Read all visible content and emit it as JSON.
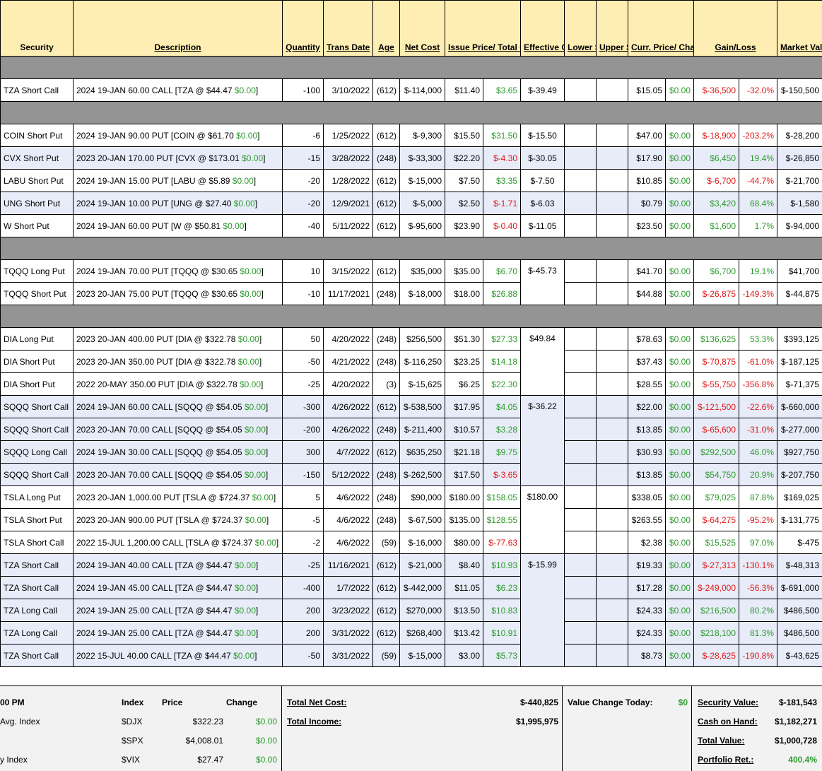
{
  "headers": {
    "security": "Security",
    "description": "Description",
    "quantity": "Quantity",
    "trans_date": "Trans Date",
    "age": "Age",
    "net_cost": "Net Cost",
    "issue_price": "Issue Price/ Total Change",
    "effective": "Effective Cost /Shr",
    "lower_stop": "Lower Stop Limit",
    "upper_stop": "Upper Stop Limit",
    "curr_price": "Curr. Price/ Change Today",
    "gain_loss": "Gain/Loss",
    "market_value": "Market Value"
  },
  "rows": [
    {
      "sep": true
    },
    {
      "sec": "TZA Short Call",
      "desc": "2024 19-JAN 60.00 CALL [TZA @ $44.47 ",
      "chg": "$0.00",
      "qty": "-100",
      "date": "3/10/2022",
      "age": "(612)",
      "net": "$-114,000",
      "issue": "$11.40",
      "tchg": "$3.65",
      "tchgc": "g",
      "eff": "$-39.49",
      "effspan": 1,
      "curr": "$15.05",
      "today": "$0.00",
      "gl": "$-36,500",
      "glc": "r",
      "pct": "-32.0%",
      "pctc": "r",
      "mv": "$-150,500",
      "alt": false
    },
    {
      "sep": true
    },
    {
      "sec": "COIN Short Put",
      "desc": "2024 19-JAN 90.00 PUT [COIN @ $61.70 ",
      "chg": "$0.00",
      "qty": "-6",
      "date": "1/25/2022",
      "age": "(612)",
      "net": "$-9,300",
      "issue": "$15.50",
      "tchg": "$31.50",
      "tchgc": "g",
      "eff": "$-15.50",
      "effspan": 1,
      "curr": "$47.00",
      "today": "$0.00",
      "gl": "$-18,900",
      "glc": "r",
      "pct": "-203.2%",
      "pctc": "r",
      "mv": "$-28,200",
      "alt": false
    },
    {
      "sec": "CVX Short Put",
      "desc": "2023 20-JAN 170.00 PUT [CVX @ $173.01 ",
      "chg": "$0.00",
      "qty": "-15",
      "date": "3/28/2022",
      "age": "(248)",
      "net": "$-33,300",
      "issue": "$22.20",
      "tchg": "$-4.30",
      "tchgc": "r",
      "eff": "$-30.05",
      "effspan": 1,
      "curr": "$17.90",
      "today": "$0.00",
      "gl": "$6,450",
      "glc": "g",
      "pct": "19.4%",
      "pctc": "g",
      "mv": "$-26,850",
      "alt": true
    },
    {
      "sec": "LABU Short Put",
      "desc": "2024 19-JAN 15.00 PUT [LABU @ $5.89 ",
      "chg": "$0.00",
      "qty": "-20",
      "date": "1/28/2022",
      "age": "(612)",
      "net": "$-15,000",
      "issue": "$7.50",
      "tchg": "$3.35",
      "tchgc": "g",
      "eff": "$-7.50",
      "effspan": 1,
      "curr": "$10.85",
      "today": "$0.00",
      "gl": "$-6,700",
      "glc": "r",
      "pct": "-44.7%",
      "pctc": "r",
      "mv": "$-21,700",
      "alt": false
    },
    {
      "sec": "UNG Short Put",
      "desc": "2024 19-JAN 10.00 PUT [UNG @ $27.40 ",
      "chg": "$0.00",
      "qty": "-20",
      "date": "12/9/2021",
      "age": "(612)",
      "net": "$-5,000",
      "issue": "$2.50",
      "tchg": "$-1.71",
      "tchgc": "r",
      "eff": "$-6.03",
      "effspan": 1,
      "curr": "$0.79",
      "today": "$0.00",
      "gl": "$3,420",
      "glc": "g",
      "pct": "68.4%",
      "pctc": "g",
      "mv": "$-1,580",
      "alt": true
    },
    {
      "sec": "W Short Put",
      "desc": "2024 19-JAN 60.00 PUT [W @ $50.81 ",
      "chg": "$0.00",
      "qty": "-40",
      "date": "5/11/2022",
      "age": "(612)",
      "net": "$-95,600",
      "issue": "$23.90",
      "tchg": "$-0.40",
      "tchgc": "r",
      "eff": "$-11.05",
      "effspan": 1,
      "curr": "$23.50",
      "today": "$0.00",
      "gl": "$1,600",
      "glc": "g",
      "pct": "1.7%",
      "pctc": "g",
      "mv": "$-94,000",
      "alt": false
    },
    {
      "sep": true
    },
    {
      "sec": "TQQQ Long Put",
      "desc": "2024 19-JAN 70.00 PUT [TQQQ @ $30.65 ",
      "chg": "$0.00",
      "qty": "10",
      "date": "3/15/2022",
      "age": "(612)",
      "net": "$35,000",
      "issue": "$35.00",
      "tchg": "$6.70",
      "tchgc": "g",
      "eff": "$-45.73",
      "effspan": 2,
      "curr": "$41.70",
      "today": "$0.00",
      "gl": "$6,700",
      "glc": "g",
      "pct": "19.1%",
      "pctc": "g",
      "mv": "$41,700",
      "alt": false
    },
    {
      "sec": "TQQQ Short Put",
      "desc": "2023 20-JAN 75.00 PUT [TQQQ @ $30.65 ",
      "chg": "$0.00",
      "qty": "-10",
      "date": "11/17/2021",
      "age": "(248)",
      "net": "$-18,000",
      "issue": "$18.00",
      "tchg": "$26.88",
      "tchgc": "g",
      "eff": null,
      "curr": "$44.88",
      "today": "$0.00",
      "gl": "$-26,875",
      "glc": "r",
      "pct": "-149.3%",
      "pctc": "r",
      "mv": "$-44,875",
      "alt": false
    },
    {
      "sep": true
    },
    {
      "sec": "DIA Long Put",
      "desc": "2023 20-JAN 400.00 PUT [DIA @ $322.78 ",
      "chg": "$0.00",
      "qty": "50",
      "date": "4/20/2022",
      "age": "(248)",
      "net": "$256,500",
      "issue": "$51.30",
      "tchg": "$27.33",
      "tchgc": "g",
      "eff": "$49.84",
      "effspan": 3,
      "curr": "$78.63",
      "today": "$0.00",
      "gl": "$136,625",
      "glc": "g",
      "pct": "53.3%",
      "pctc": "g",
      "mv": "$393,125",
      "alt": false
    },
    {
      "sec": "DIA Short Put",
      "desc": "2023 20-JAN 350.00 PUT [DIA @ $322.78 ",
      "chg": "$0.00",
      "qty": "-50",
      "date": "4/21/2022",
      "age": "(248)",
      "net": "$-116,250",
      "issue": "$23.25",
      "tchg": "$14.18",
      "tchgc": "g",
      "eff": null,
      "curr": "$37.43",
      "today": "$0.00",
      "gl": "$-70,875",
      "glc": "r",
      "pct": "-61.0%",
      "pctc": "r",
      "mv": "$-187,125",
      "alt": false
    },
    {
      "sec": "DIA Short Put",
      "desc": "2022 20-MAY 350.00 PUT [DIA @ $322.78 ",
      "chg": "$0.00",
      "qty": "-25",
      "date": "4/20/2022",
      "age": "(3)",
      "net": "$-15,625",
      "issue": "$6.25",
      "tchg": "$22.30",
      "tchgc": "g",
      "eff": null,
      "curr": "$28.55",
      "today": "$0.00",
      "gl": "$-55,750",
      "glc": "r",
      "pct": "-356.8%",
      "pctc": "r",
      "mv": "$-71,375",
      "alt": false
    },
    {
      "sec": "SQQQ Short Call",
      "desc": "2024 19-JAN 60.00 CALL [SQQQ @ $54.05 ",
      "chg": "$0.00",
      "qty": "-300",
      "date": "4/26/2022",
      "age": "(612)",
      "net": "$-538,500",
      "issue": "$17.95",
      "tchg": "$4.05",
      "tchgc": "g",
      "eff": "$-36.22",
      "effspan": 4,
      "curr": "$22.00",
      "today": "$0.00",
      "gl": "$-121,500",
      "glc": "r",
      "pct": "-22.6%",
      "pctc": "r",
      "mv": "$-660,000",
      "alt": true
    },
    {
      "sec": "SQQQ Short Call",
      "desc": "2023 20-JAN 70.00 CALL [SQQQ @ $54.05 ",
      "chg": "$0.00",
      "qty": "-200",
      "date": "4/26/2022",
      "age": "(248)",
      "net": "$-211,400",
      "issue": "$10.57",
      "tchg": "$3.28",
      "tchgc": "g",
      "eff": null,
      "curr": "$13.85",
      "today": "$0.00",
      "gl": "$-65,600",
      "glc": "r",
      "pct": "-31.0%",
      "pctc": "r",
      "mv": "$-277,000",
      "alt": true
    },
    {
      "sec": "SQQQ Long Call",
      "desc": "2024 19-JAN 30.00 CALL [SQQQ @ $54.05 ",
      "chg": "$0.00",
      "qty": "300",
      "date": "4/7/2022",
      "age": "(612)",
      "net": "$635,250",
      "issue": "$21.18",
      "tchg": "$9.75",
      "tchgc": "g",
      "eff": null,
      "curr": "$30.93",
      "today": "$0.00",
      "gl": "$292,500",
      "glc": "g",
      "pct": "46.0%",
      "pctc": "g",
      "mv": "$927,750",
      "alt": true
    },
    {
      "sec": "SQQQ Short Call",
      "desc": "2023 20-JAN 70.00 CALL [SQQQ @ $54.05 ",
      "chg": "$0.00",
      "qty": "-150",
      "date": "5/12/2022",
      "age": "(248)",
      "net": "$-262,500",
      "issue": "$17.50",
      "tchg": "$-3.65",
      "tchgc": "r",
      "eff": null,
      "curr": "$13.85",
      "today": "$0.00",
      "gl": "$54,750",
      "glc": "g",
      "pct": "20.9%",
      "pctc": "g",
      "mv": "$-207,750",
      "alt": true
    },
    {
      "sec": "TSLA Long Put",
      "desc": "2023 20-JAN 1,000.00 PUT [TSLA @ $724.37 ",
      "chg": "$0.00",
      "qty": "5",
      "date": "4/6/2022",
      "age": "(248)",
      "net": "$90,000",
      "issue": "$180.00",
      "tchg": "$158.05",
      "tchgc": "g",
      "eff": "$180.00",
      "effspan": 3,
      "curr": "$338.05",
      "today": "$0.00",
      "gl": "$79,025",
      "glc": "g",
      "pct": "87.8%",
      "pctc": "g",
      "mv": "$169,025",
      "alt": false
    },
    {
      "sec": "TSLA Short Put",
      "desc": "2023 20-JAN 900.00 PUT [TSLA @ $724.37 ",
      "chg": "$0.00",
      "qty": "-5",
      "date": "4/6/2022",
      "age": "(248)",
      "net": "$-67,500",
      "issue": "$135.00",
      "tchg": "$128.55",
      "tchgc": "g",
      "eff": null,
      "curr": "$263.55",
      "today": "$0.00",
      "gl": "$-64,275",
      "glc": "r",
      "pct": "-95.2%",
      "pctc": "r",
      "mv": "$-131,775",
      "alt": false
    },
    {
      "sec": "TSLA Short Call",
      "desc": "2022 15-JUL 1,200.00 CALL [TSLA @ $724.37 ",
      "chg": "$0.00",
      "qty": "-2",
      "date": "4/6/2022",
      "age": "(59)",
      "net": "$-16,000",
      "issue": "$80.00",
      "tchg": "$-77.63",
      "tchgc": "r",
      "eff": null,
      "curr": "$2.38",
      "today": "$0.00",
      "gl": "$15,525",
      "glc": "g",
      "pct": "97.0%",
      "pctc": "g",
      "mv": "$-475",
      "alt": false
    },
    {
      "sec": "TZA Short Call",
      "desc": "2024 19-JAN 40.00 CALL [TZA @ $44.47 ",
      "chg": "$0.00",
      "qty": "-25",
      "date": "11/16/2021",
      "age": "(612)",
      "net": "$-21,000",
      "issue": "$8.40",
      "tchg": "$10.93",
      "tchgc": "g",
      "eff": "$-15.99",
      "effspan": 5,
      "curr": "$19.33",
      "today": "$0.00",
      "gl": "$-27,313",
      "glc": "r",
      "pct": "-130.1%",
      "pctc": "r",
      "mv": "$-48,313",
      "alt": true
    },
    {
      "sec": "TZA Short Call",
      "desc": "2024 19-JAN 45.00 CALL [TZA @ $44.47 ",
      "chg": "$0.00",
      "qty": "-400",
      "date": "1/7/2022",
      "age": "(612)",
      "net": "$-442,000",
      "issue": "$11.05",
      "tchg": "$6.23",
      "tchgc": "g",
      "eff": null,
      "curr": "$17.28",
      "today": "$0.00",
      "gl": "$-249,000",
      "glc": "r",
      "pct": "-56.3%",
      "pctc": "r",
      "mv": "$-691,000",
      "alt": true
    },
    {
      "sec": "TZA Long Call",
      "desc": "2024 19-JAN 25.00 CALL [TZA @ $44.47 ",
      "chg": "$0.00",
      "qty": "200",
      "date": "3/23/2022",
      "age": "(612)",
      "net": "$270,000",
      "issue": "$13.50",
      "tchg": "$10.83",
      "tchgc": "g",
      "eff": null,
      "curr": "$24.33",
      "today": "$0.00",
      "gl": "$216,500",
      "glc": "g",
      "pct": "80.2%",
      "pctc": "g",
      "mv": "$486,500",
      "alt": true
    },
    {
      "sec": "TZA Long Call",
      "desc": "2024 19-JAN 25.00 CALL [TZA @ $44.47 ",
      "chg": "$0.00",
      "qty": "200",
      "date": "3/31/2022",
      "age": "(612)",
      "net": "$268,400",
      "issue": "$13.42",
      "tchg": "$10.91",
      "tchgc": "g",
      "eff": null,
      "curr": "$24.33",
      "today": "$0.00",
      "gl": "$218,100",
      "glc": "g",
      "pct": "81.3%",
      "pctc": "g",
      "mv": "$486,500",
      "alt": true
    },
    {
      "sec": "TZA Short Call",
      "desc": "2022 15-JUL 40.00 CALL [TZA @ $44.47 ",
      "chg": "$0.00",
      "qty": "-50",
      "date": "3/31/2022",
      "age": "(59)",
      "net": "$-15,000",
      "issue": "$3.00",
      "tchg": "$5.73",
      "tchgc": "g",
      "eff": null,
      "curr": "$8.73",
      "today": "$0.00",
      "gl": "$-28,625",
      "glc": "r",
      "pct": "-190.8%",
      "pctc": "r",
      "mv": "$-43,625",
      "alt": true
    }
  ],
  "footer": {
    "time_fragment": "00 PM",
    "index_header": "Index",
    "price_header": "Price",
    "change_header": "Change",
    "index_rows": [
      {
        "label": "Avg. Index",
        "symbol": "$DJX",
        "price": "$322.23",
        "change": "$0.00"
      },
      {
        "label": "",
        "symbol": "$SPX",
        "price": "$4,008.01",
        "change": "$0.00"
      },
      {
        "label": "y Index",
        "symbol": "$VIX",
        "price": "$27.47",
        "change": "$0.00"
      }
    ],
    "total_net_cost_label": "Total Net Cost:",
    "total_net_cost": "$-440,825",
    "total_income_label": "Total Income:",
    "total_income": "$1,995,975",
    "value_change_label": "Value Change Today:",
    "value_change": "$0",
    "security_value_label": "Security Value:",
    "security_value": "$-181,543",
    "cash_label": "Cash on Hand:",
    "cash": "$1,182,271",
    "total_value_label": "Total Value:",
    "total_value": "$1,000,728",
    "portfolio_ret_label": "Portfolio Ret.:",
    "portfolio_ret": "400.4%"
  }
}
